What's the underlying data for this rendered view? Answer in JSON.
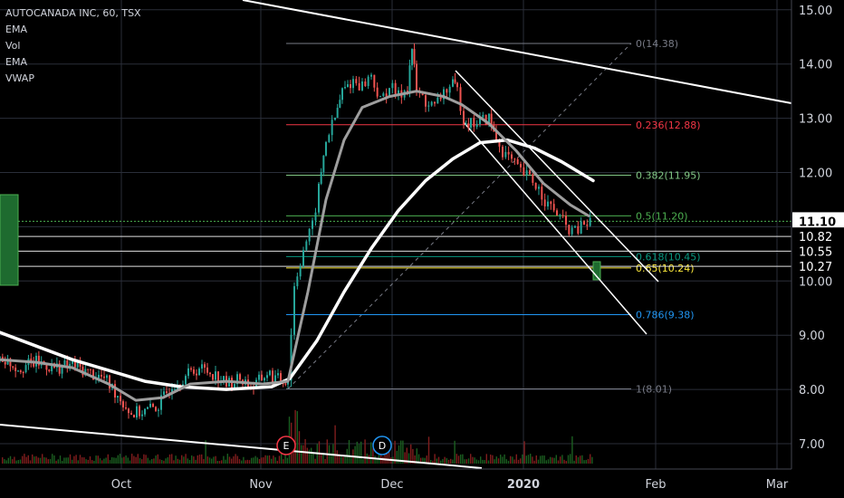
{
  "chart_data": {
    "type": "candlestick",
    "title": "AUTOCANADA INC, 60, TSX",
    "indicators": [
      "EMA",
      "Vol",
      "EMA",
      "VWAP"
    ],
    "x_tick_labels": [
      "Oct",
      "Nov",
      "Dec",
      "2020",
      "Feb",
      "Mar"
    ],
    "y_tick_labels": [
      "7.00",
      "8.00",
      "9.00",
      "10.00",
      "11.00",
      "12.00",
      "13.00",
      "14.00",
      "15.00"
    ],
    "ylim": [
      6.7,
      15.2
    ],
    "price_badges": [
      {
        "value": "11.10",
        "style": "current"
      },
      {
        "value": "10.82",
        "style": "level"
      },
      {
        "value": "10.55",
        "style": "level"
      },
      {
        "value": "10.27",
        "style": "level"
      }
    ],
    "fibonacci": [
      {
        "label": "0(14.38)",
        "value": 14.38,
        "color": "#787b86"
      },
      {
        "label": "0.236(12.88)",
        "value": 12.88,
        "color": "#f23645"
      },
      {
        "label": "0.382(11.95)",
        "value": 11.95,
        "color": "#81c784"
      },
      {
        "label": "0.5(11.20)",
        "value": 11.2,
        "color": "#4caf50"
      },
      {
        "label": "0.618(10.45)",
        "value": 10.45,
        "color": "#089981"
      },
      {
        "label": "0.65(10.24)",
        "value": 10.24,
        "color": "#ffeb3b"
      },
      {
        "label": "0.786(9.38)",
        "value": 9.38,
        "color": "#2196f3"
      },
      {
        "label": "1(8.01)",
        "value": 8.01,
        "color": "#787b86"
      }
    ],
    "horizontal_levels": [
      10.82,
      10.55,
      10.27
    ],
    "event_markers": [
      {
        "label": "E",
        "color": "#f23645"
      },
      {
        "label": "D",
        "color": "#2196f3"
      }
    ],
    "price_path": [
      [
        0,
        8.6
      ],
      [
        20,
        8.4
      ],
      [
        40,
        8.5
      ],
      [
        60,
        8.4
      ],
      [
        80,
        8.45
      ],
      [
        100,
        8.3
      ],
      [
        115,
        8.2
      ],
      [
        130,
        7.9
      ],
      [
        145,
        7.55
      ],
      [
        160,
        7.6
      ],
      [
        175,
        7.7
      ],
      [
        190,
        8.1
      ],
      [
        205,
        8.25
      ],
      [
        220,
        8.4
      ],
      [
        235,
        8.3
      ],
      [
        250,
        8.1
      ],
      [
        265,
        8.2
      ],
      [
        280,
        8.05
      ],
      [
        295,
        8.3
      ],
      [
        310,
        8.15
      ],
      [
        318,
        8.2
      ],
      [
        325,
        9.9
      ],
      [
        335,
        10.6
      ],
      [
        345,
        11.0
      ],
      [
        352,
        11.7
      ],
      [
        360,
        12.6
      ],
      [
        370,
        13.0
      ],
      [
        378,
        13.5
      ],
      [
        390,
        13.7
      ],
      [
        400,
        13.6
      ],
      [
        410,
        13.8
      ],
      [
        420,
        13.3
      ],
      [
        430,
        13.6
      ],
      [
        440,
        13.4
      ],
      [
        450,
        13.6
      ],
      [
        455,
        14.3
      ],
      [
        460,
        13.5
      ],
      [
        470,
        13.3
      ],
      [
        480,
        13.2
      ],
      [
        490,
        13.5
      ],
      [
        500,
        13.6
      ],
      [
        505,
        13.5
      ],
      [
        512,
        13.0
      ],
      [
        520,
        12.9
      ],
      [
        530,
        12.95
      ],
      [
        540,
        13.0
      ],
      [
        548,
        12.6
      ],
      [
        555,
        12.4
      ],
      [
        565,
        12.2
      ],
      [
        575,
        12.0
      ],
      [
        585,
        11.9
      ],
      [
        595,
        11.7
      ],
      [
        605,
        11.4
      ],
      [
        615,
        11.25
      ],
      [
        625,
        11.0
      ],
      [
        635,
        10.9
      ],
      [
        645,
        11.05
      ],
      [
        655,
        11.1
      ]
    ],
    "ema_slow": [
      [
        0,
        9.05
      ],
      [
        40,
        8.8
      ],
      [
        80,
        8.55
      ],
      [
        120,
        8.35
      ],
      [
        160,
        8.15
      ],
      [
        200,
        8.05
      ],
      [
        250,
        8.0
      ],
      [
        300,
        8.05
      ],
      [
        320,
        8.2
      ],
      [
        350,
        8.9
      ],
      [
        380,
        9.8
      ],
      [
        410,
        10.6
      ],
      [
        440,
        11.3
      ],
      [
        470,
        11.85
      ],
      [
        500,
        12.25
      ],
      [
        530,
        12.55
      ],
      [
        560,
        12.6
      ],
      [
        590,
        12.45
      ],
      [
        620,
        12.2
      ],
      [
        655,
        11.85
      ]
    ],
    "ema_fast": [
      [
        0,
        8.55
      ],
      [
        40,
        8.5
      ],
      [
        80,
        8.4
      ],
      [
        120,
        8.1
      ],
      [
        150,
        7.8
      ],
      [
        180,
        7.85
      ],
      [
        210,
        8.1
      ],
      [
        250,
        8.15
      ],
      [
        290,
        8.1
      ],
      [
        318,
        8.15
      ],
      [
        340,
        9.8
      ],
      [
        360,
        11.5
      ],
      [
        380,
        12.6
      ],
      [
        400,
        13.2
      ],
      [
        430,
        13.4
      ],
      [
        460,
        13.5
      ],
      [
        490,
        13.4
      ],
      [
        510,
        13.25
      ],
      [
        540,
        12.9
      ],
      [
        570,
        12.4
      ],
      [
        600,
        11.8
      ],
      [
        630,
        11.4
      ],
      [
        650,
        11.2
      ]
    ]
  }
}
